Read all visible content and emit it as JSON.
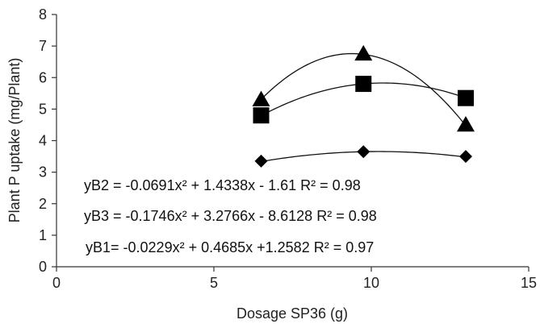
{
  "chart_data": {
    "type": "scatter",
    "title": "",
    "xlabel": "Dosage SP36 (g)",
    "ylabel": "Plant P uptake (mg/Plant)",
    "xlim": [
      0,
      15
    ],
    "ylim": [
      0,
      8
    ],
    "x_ticks": [
      0,
      5,
      10,
      15
    ],
    "y_ticks": [
      0,
      1,
      2,
      3,
      4,
      5,
      6,
      7,
      8
    ],
    "grid": false,
    "legend": "none",
    "series": [
      {
        "marker": "triangle",
        "x": [
          6.5,
          9.75,
          13
        ],
        "y": [
          5.3,
          6.75,
          4.5
        ],
        "fit": {
          "a": -0.1746,
          "b": 3.2766,
          "c": -8.6128
        }
      },
      {
        "marker": "square",
        "x": [
          6.5,
          9.75,
          13
        ],
        "y": [
          4.8,
          5.8,
          5.35
        ],
        "fit": {
          "a": -0.0691,
          "b": 1.4338,
          "c": -1.61
        }
      },
      {
        "marker": "diamond",
        "x": [
          6.5,
          9.75,
          13
        ],
        "y": [
          3.35,
          3.65,
          3.5
        ],
        "fit": {
          "a": -0.0229,
          "b": 0.4685,
          "c": 1.2582
        }
      }
    ],
    "annotations": [
      {
        "label": "yB2 = -0.0691x² + 1.4338x - 1.61  R² = 0.98"
      },
      {
        "label": "yB3 = -0.1746x² + 3.2766x - 8.6128  R² = 0.98"
      },
      {
        "label": "yB1= -0.0229x² + 0.4685x +1.2582     R² = 0.97"
      }
    ]
  }
}
